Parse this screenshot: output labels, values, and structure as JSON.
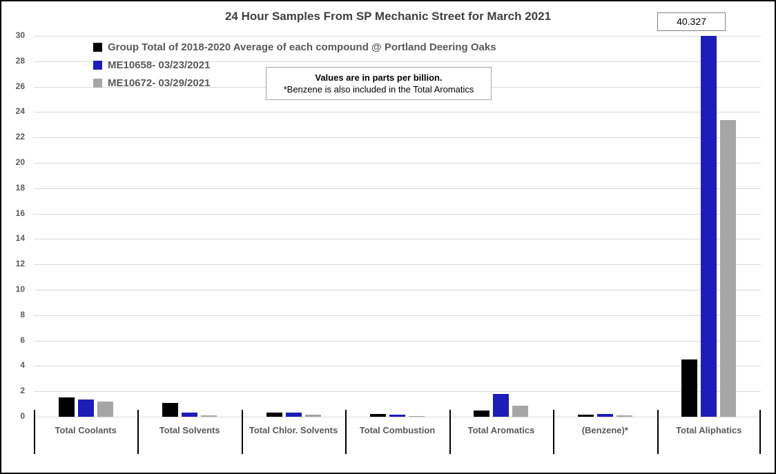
{
  "chart_data": {
    "type": "bar",
    "title": "24 Hour Samples From SP Mechanic Street for March 2021",
    "categories": [
      "Total Coolants",
      "Total Solvents",
      "Total Chlor. Solvents",
      "Total Combustion",
      "Total Aromatics",
      "(Benzene)*",
      "Total Aliphatics"
    ],
    "series": [
      {
        "name": "Group Total of 2018-2020 Average of each compound @ Portland Deering Oaks",
        "color": "#000000",
        "values": [
          1.5,
          1.1,
          0.35,
          0.24,
          0.5,
          0.18,
          4.5
        ]
      },
      {
        "name": "ME10658- 03/23/2021",
        "color": "#1d1db7",
        "values": [
          1.35,
          0.3,
          0.3,
          0.14,
          1.8,
          0.22,
          40.327
        ]
      },
      {
        "name": "ME10672- 03/29/2021",
        "color": "#a6a6a6",
        "values": [
          1.2,
          0.13,
          0.17,
          0.08,
          0.85,
          0.13,
          23.35
        ]
      }
    ],
    "ylim": [
      0,
      30
    ],
    "ytick_step": 2,
    "grid": "horizontal",
    "legend_position": "top-left",
    "annotation": {
      "line1": "Values are in parts per billion.",
      "line2": "*Benzene is also included in the Total Aromatics"
    },
    "callout_label": "40.327",
    "xlabel": "",
    "ylabel": "",
    "colors": {
      "gridline": "#d9d9d9",
      "axis_text": "#595959",
      "title_text": "#404040",
      "separator": "#000000"
    }
  }
}
